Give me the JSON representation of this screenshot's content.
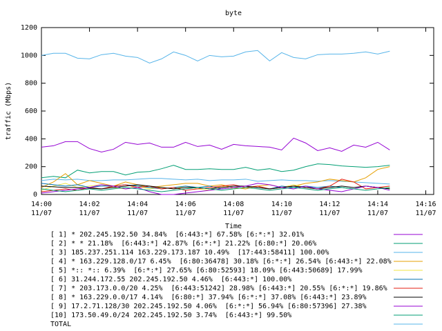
{
  "chart_data": {
    "type": "line",
    "title": "byte",
    "x_label": "Time",
    "y_label": "traffic (Mbps)",
    "x": [
      0,
      0.5,
      1,
      1.5,
      2,
      2.5,
      3,
      3.5,
      4,
      4.5,
      5,
      5.5,
      6,
      6.5,
      7,
      7.5,
      8,
      8.5,
      9,
      9.5,
      10,
      10.5,
      11,
      11.5,
      12,
      12.5,
      13,
      13.5,
      14,
      14.5
    ],
    "xlim": [
      0,
      16.33
    ],
    "xticks": [
      {
        "value": 0,
        "label": "14:00",
        "date": "11/07"
      },
      {
        "value": 2,
        "label": "14:02",
        "date": "11/07"
      },
      {
        "value": 4,
        "label": "14:04",
        "date": "11/07"
      },
      {
        "value": 6,
        "label": "14:06",
        "date": "11/07"
      },
      {
        "value": 8,
        "label": "14:08",
        "date": "11/07"
      },
      {
        "value": 10,
        "label": "14:10",
        "date": "11/07"
      },
      {
        "value": 12,
        "label": "14:12",
        "date": "11/07"
      },
      {
        "value": 14,
        "label": "14:14",
        "date": "11/07"
      },
      {
        "value": 16,
        "label": "14:16",
        "date": "11/07"
      }
    ],
    "ylim": [
      0,
      1200
    ],
    "yticks": [
      0,
      200,
      400,
      600,
      800,
      1000,
      1200
    ],
    "grid": false,
    "series": [
      {
        "name": "[ 1] * 202.245.192.50 34.84%  [6:443:*] 67.58% [6:*:*] 32.01%",
        "color": "#9400d3",
        "values": [
          340,
          350,
          380,
          380,
          330,
          305,
          325,
          375,
          360,
          370,
          340,
          340,
          375,
          345,
          355,
          325,
          360,
          350,
          345,
          340,
          320,
          405,
          370,
          315,
          335,
          310,
          355,
          340,
          375,
          320
        ]
      },
      {
        "name": "[ 2] * * 21.18%  [6:443:*] 42.87% [6:*:*] 21.22% [6:80:*] 20.06%",
        "color": "#009e73",
        "values": [
          120,
          130,
          120,
          175,
          155,
          165,
          165,
          140,
          160,
          165,
          185,
          210,
          180,
          180,
          185,
          180,
          180,
          195,
          175,
          185,
          165,
          175,
          200,
          220,
          215,
          205,
          200,
          195,
          200,
          210
        ]
      },
      {
        "name": "[ 3] 185.237.251.114 163.229.173.187 10.49%  [17:443:58411] 100.00%",
        "color": "#56b4e9",
        "values": [
          100,
          110,
          105,
          110,
          100,
          100,
          105,
          105,
          110,
          115,
          115,
          110,
          105,
          110,
          100,
          105,
          105,
          110,
          95,
          100,
          105,
          100,
          100,
          95,
          100,
          95,
          90,
          85,
          80,
          75
        ]
      },
      {
        "name": "[ 4] * 163.229.128.0/17 6.45%  [6:80:36478] 30.18% [6:*:*] 26.54% [6:443:*] 22.08%",
        "color": "#e69f00",
        "values": [
          50,
          90,
          150,
          70,
          100,
          80,
          60,
          90,
          70,
          50,
          60,
          70,
          80,
          80,
          60,
          70,
          50,
          40,
          60,
          70,
          50,
          60,
          80,
          90,
          110,
          100,
          90,
          120,
          180,
          200
        ]
      },
      {
        "name": "[ 5] *:: *:: 6.39%  [6:*:*] 27.65% [6:80:52593] 18.09% [6:443:50689] 17.99%",
        "color": "#f0e442",
        "values": [
          30,
          60,
          80,
          50,
          60,
          70,
          50,
          40,
          60,
          40,
          50,
          40,
          60,
          40,
          30,
          60,
          40,
          50,
          60,
          40,
          50,
          70,
          50,
          40,
          60,
          50,
          40,
          60,
          50,
          45
        ]
      },
      {
        "name": "[ 6] 31.244.172.55 202.245.192.50 4.46%  [6:443:*] 100.00%",
        "color": "#0072b2",
        "values": [
          80,
          70,
          60,
          70,
          50,
          60,
          60,
          70,
          60,
          50,
          40,
          50,
          60,
          50,
          60,
          40,
          50,
          60,
          50,
          40,
          60,
          50,
          60,
          50,
          60,
          50,
          40,
          60,
          50,
          40
        ]
      },
      {
        "name": "[ 7] * 203.173.0.0/20 4.25%  [6:443:51242] 28.98% [6:443:*] 20.55% [6:*:*] 19.86%",
        "color": "#e51e10",
        "values": [
          20,
          30,
          40,
          30,
          50,
          40,
          60,
          70,
          50,
          60,
          40,
          50,
          30,
          40,
          50,
          60,
          70,
          50,
          60,
          40,
          50,
          60,
          50,
          40,
          60,
          110,
          90,
          40,
          50,
          60
        ]
      },
      {
        "name": "[ 8] * 163.229.0.0/17 4.14%  [6:80:*] 37.94% [6:*:*] 37.08% [6:443:*] 23.89%",
        "color": "#000000",
        "values": [
          60,
          55,
          50,
          50,
          45,
          40,
          50,
          60,
          70,
          60,
          50,
          40,
          50,
          50,
          40,
          50,
          60,
          60,
          50,
          40,
          50,
          60,
          50,
          40,
          50,
          60,
          50,
          60,
          50,
          40
        ]
      },
      {
        "name": "[ 9] 17.2.71.128/30 202.245.192.50 4.06%  [6:*:*] 56.94% [6:80:57396] 27.38%",
        "color": "#9400d3",
        "values": [
          10,
          20,
          30,
          40,
          50,
          70,
          60,
          40,
          50,
          20,
          0,
          0,
          10,
          20,
          30,
          40,
          50,
          60,
          80,
          70,
          50,
          40,
          60,
          40,
          30,
          20,
          40,
          60,
          50,
          30
        ]
      },
      {
        "name": "[10] 173.50.49.0/24 202.245.192.50 3.74%  [6:443:*] 99.50%",
        "color": "#009e73",
        "values": [
          40,
          30,
          20,
          30,
          40,
          30,
          40,
          50,
          40,
          30,
          20,
          30,
          40,
          50,
          40,
          30,
          40,
          50,
          40,
          30,
          40,
          50,
          40,
          30,
          40,
          50,
          40,
          30,
          40,
          50
        ]
      },
      {
        "name": "TOTAL",
        "color": "#56b4e9",
        "values": [
          1000,
          1015,
          1015,
          980,
          975,
          1005,
          1015,
          995,
          985,
          945,
          975,
          1025,
          1000,
          960,
          1000,
          990,
          995,
          1025,
          1035,
          960,
          1020,
          985,
          975,
          1005,
          1010,
          1010,
          1015,
          1025,
          1010,
          1030
        ]
      }
    ]
  }
}
